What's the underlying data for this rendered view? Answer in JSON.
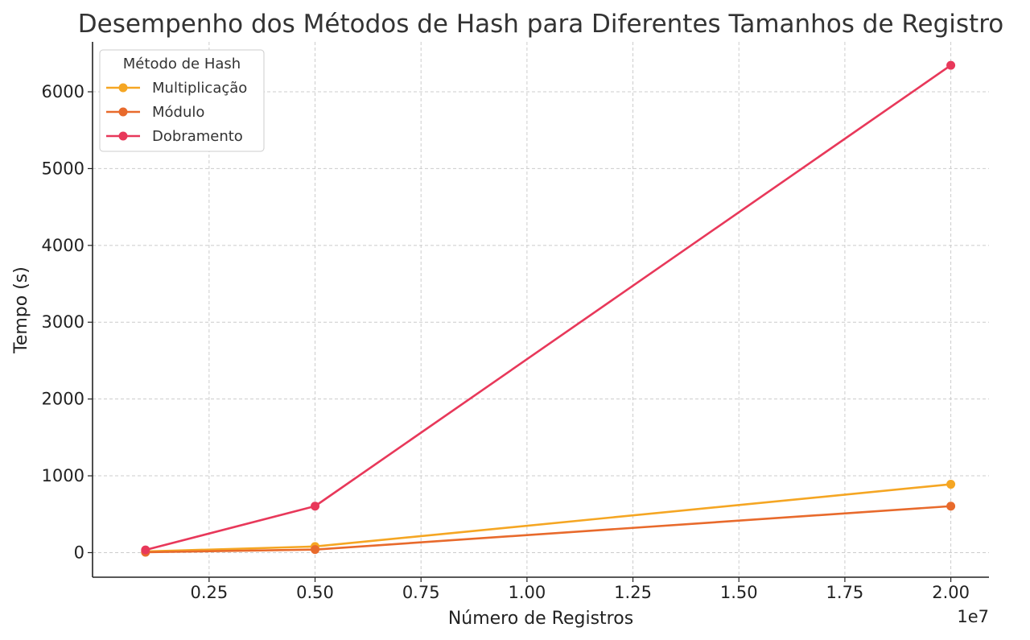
{
  "chart_data": {
    "type": "line",
    "title": "Desempenho dos Métodos de Hash para Diferentes Tamanhos de Registro",
    "xlabel": "Número de Registros",
    "ylabel": "Tempo (s)",
    "x_offset_label": "1e7",
    "x": [
      1000000,
      5000000,
      20000000
    ],
    "xlim": [
      -250000,
      20900000
    ],
    "ylim": [
      -320,
      6650
    ],
    "x_ticks": [
      2500000,
      5000000,
      7500000,
      10000000,
      12500000,
      15000000,
      17500000,
      20000000
    ],
    "x_tick_labels": [
      "0.25",
      "0.50",
      "0.75",
      "1.00",
      "1.25",
      "1.50",
      "1.75",
      "2.00"
    ],
    "y_ticks": [
      0,
      1000,
      2000,
      3000,
      4000,
      5000,
      6000
    ],
    "y_tick_labels": [
      "0",
      "1000",
      "2000",
      "3000",
      "4000",
      "5000",
      "6000"
    ],
    "grid": true,
    "legend_title": "Método de Hash",
    "legend_position": "top-left",
    "series": [
      {
        "name": "Multiplicação",
        "color": "#F5A623",
        "values": [
          15,
          80,
          890
        ]
      },
      {
        "name": "Módulo",
        "color": "#E86A2C",
        "values": [
          5,
          40,
          605
        ]
      },
      {
        "name": "Dobramento",
        "color": "#E8385A",
        "values": [
          35,
          605,
          6345
        ]
      }
    ]
  }
}
